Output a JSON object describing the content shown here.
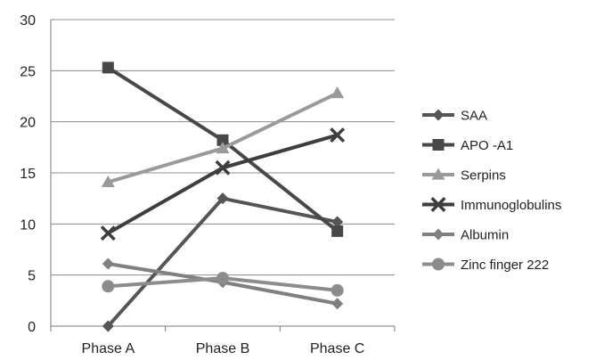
{
  "chart_data": {
    "type": "line",
    "title": "",
    "xlabel": "",
    "ylabel": "",
    "categories": [
      "Phase A",
      "Phase B",
      "Phase C"
    ],
    "ylim": [
      0,
      30
    ],
    "yticks": [
      0,
      5,
      10,
      15,
      20,
      25,
      30
    ],
    "grid": "horizontal",
    "legend_position": "right",
    "series": [
      {
        "name": "SAA",
        "marker": "diamond",
        "color": "#555555",
        "values": [
          0.0,
          12.5,
          10.2
        ]
      },
      {
        "name": "APO -A1",
        "marker": "square",
        "color": "#484848",
        "values": [
          25.3,
          18.2,
          9.3
        ]
      },
      {
        "name": "Serpins",
        "marker": "triangle",
        "color": "#9a9a9a",
        "values": [
          14.1,
          17.4,
          22.8
        ]
      },
      {
        "name": "Immunoglobulins",
        "marker": "x",
        "color": "#3e3e3e",
        "values": [
          9.1,
          15.5,
          18.7
        ]
      },
      {
        "name": "Albumin",
        "marker": "diamond",
        "color": "#808080",
        "values": [
          6.1,
          4.3,
          2.2
        ]
      },
      {
        "name": "Zinc finger 222",
        "marker": "circle",
        "color": "#8c8c8c",
        "values": [
          3.9,
          4.7,
          3.5
        ]
      }
    ]
  }
}
